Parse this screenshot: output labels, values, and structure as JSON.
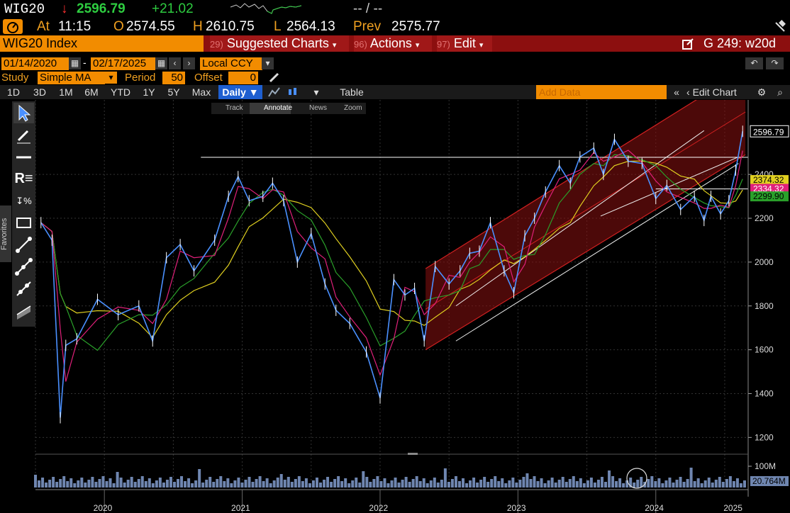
{
  "quote": {
    "ticker": "WIG20",
    "arrow": "↓",
    "last": "2596.79",
    "change": "+21.02",
    "bid_ask": "-- / --"
  },
  "stats": {
    "at_label": "At",
    "time": "11:15",
    "open_label": "O",
    "open": "2574.55",
    "high_label": "H",
    "high": "2610.75",
    "low_label": "L",
    "low": "2564.13",
    "prev_label": "Prev",
    "prev": "2575.77"
  },
  "titlebar": {
    "security": "WIG20 Index",
    "suggested_num": "29)",
    "suggested": "Suggested Charts",
    "actions_num": "96)",
    "actions": "Actions",
    "edit_num": "97)",
    "edit": "Edit",
    "page": "G 249: w20d"
  },
  "range": {
    "start": "01/14/2020",
    "end": "02/17/2025",
    "currency": "Local CCY"
  },
  "study": {
    "label": "Study",
    "value": "Simple MA",
    "period_label": "Period",
    "period": "50",
    "offset_label": "Offset",
    "offset": "0"
  },
  "periods": [
    "1D",
    "3D",
    "1M",
    "6M",
    "YTD",
    "1Y",
    "5Y",
    "Max"
  ],
  "frequency": "Daily ▼",
  "table_label": "Table",
  "add_data_placeholder": "Add Data",
  "edit_chart": "Edit Chart",
  "mini_toolbar": [
    "Track",
    "Annotate",
    "News",
    "Zoom"
  ],
  "favorites_label": "Favorites",
  "colors": {
    "price": "#4a90ff",
    "ma_short": "#e0207a",
    "ma_mid": "#2aa02a",
    "ma_long": "#e0d020",
    "channel": "#8b1010",
    "accent_orange": "#f28c00",
    "titlebar": "#8c0f0f",
    "up_green": "#2ecc40",
    "down_red": "#ff3030"
  },
  "chart_data": {
    "type": "line",
    "x_labels": [
      "2020",
      "2021",
      "2022",
      "2023",
      "2024",
      "2025"
    ],
    "y_ticks": [
      "1200",
      "1400",
      "1600",
      "1800",
      "2000",
      "2200",
      "2400"
    ],
    "ylim": [
      1130,
      2740
    ],
    "price_series": {
      "x": [
        2020.04,
        2020.12,
        2020.18,
        2020.22,
        2020.3,
        2020.45,
        2020.6,
        2020.75,
        2020.85,
        2020.95,
        2021.05,
        2021.15,
        2021.3,
        2021.4,
        2021.47,
        2021.55,
        2021.65,
        2021.72,
        2021.8,
        2021.9,
        2022.0,
        2022.1,
        2022.18,
        2022.28,
        2022.4,
        2022.5,
        2022.6,
        2022.68,
        2022.75,
        2022.82,
        2022.9,
        2023.0,
        2023.08,
        2023.15,
        2023.22,
        2023.3,
        2023.4,
        2023.47,
        2023.55,
        2023.62,
        2023.7,
        2023.8,
        2023.88,
        2023.95,
        2024.05,
        2024.12,
        2024.2,
        2024.3,
        2024.4,
        2024.5,
        2024.58,
        2024.68,
        2024.78,
        2024.85,
        2024.9,
        2024.97,
        2025.03,
        2025.08,
        2025.13
      ],
      "y": [
        2180,
        2100,
        1290,
        1620,
        1650,
        1830,
        1760,
        1800,
        1640,
        2020,
        2080,
        1960,
        2100,
        2300,
        2390,
        2280,
        2300,
        2360,
        2280,
        2000,
        2130,
        1900,
        1780,
        1720,
        1590,
        1380,
        1920,
        1850,
        1880,
        1640,
        1980,
        1900,
        1960,
        2040,
        2050,
        2180,
        1960,
        1860,
        2120,
        2200,
        2320,
        2440,
        2360,
        2480,
        2520,
        2400,
        2560,
        2460,
        2450,
        2290,
        2350,
        2240,
        2300,
        2190,
        2300,
        2220,
        2280,
        2420,
        2596.79
      ]
    },
    "moving_averages": [
      {
        "name": "2374.32",
        "color": "#e0d020"
      },
      {
        "name": "2334.32",
        "color": "#e0207a"
      },
      {
        "name": "2299.90",
        "color": "#2aa02a"
      }
    ],
    "last_price_label": "2596.79",
    "horizontal_lines": [
      2478,
      2334
    ],
    "channel": {
      "start": [
        2022.83,
        1600,
        1970
      ],
      "end": [
        2025.15,
        2490,
        2880
      ]
    },
    "volume": {
      "axis_labels": [
        "100M",
        "20.764M"
      ]
    }
  }
}
